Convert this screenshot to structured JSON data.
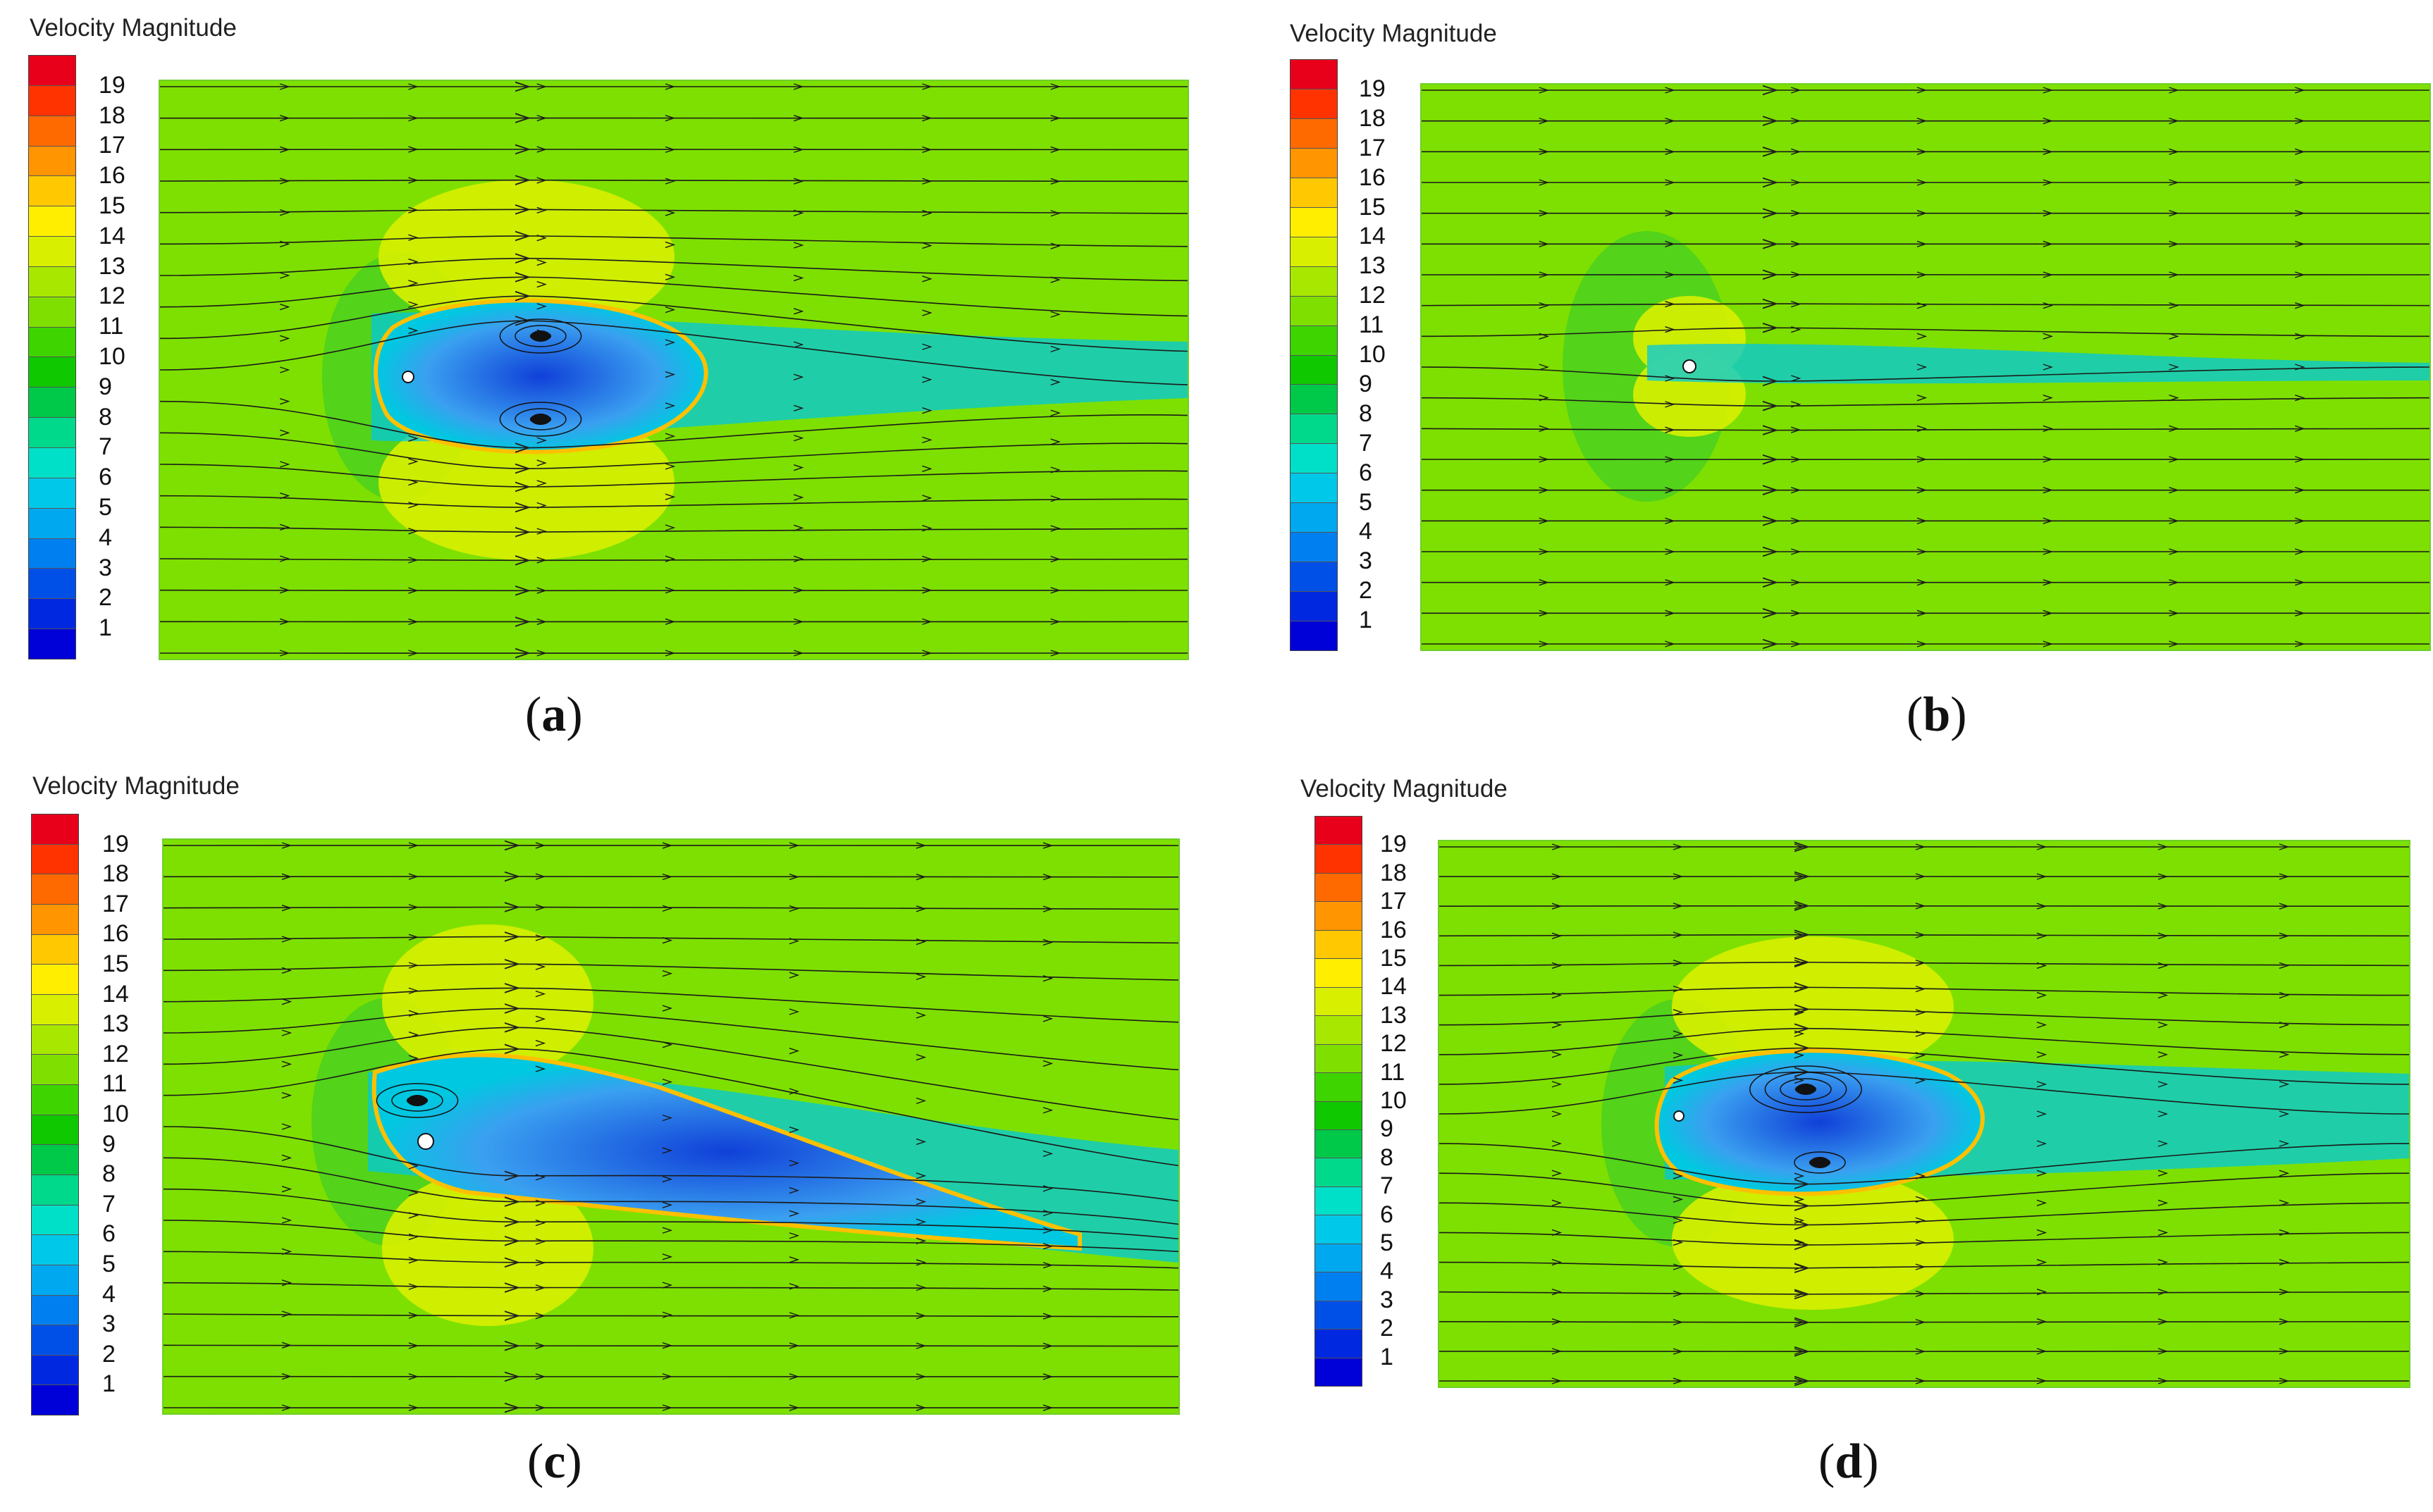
{
  "panels": [
    {
      "id": "a",
      "title": "Velocity Magnitude",
      "label": "(a)",
      "wake": "symmetric"
    },
    {
      "id": "b",
      "title": "Velocity Magnitude",
      "label": "(b)",
      "wake": "thin"
    },
    {
      "id": "c",
      "title": "Velocity Magnitude",
      "label": "(c)",
      "wake": "inclined"
    },
    {
      "id": "d",
      "title": "Velocity Magnitude",
      "label": "(d)",
      "wake": "symmetric"
    }
  ],
  "colorbar": {
    "ticks": [
      "19",
      "18",
      "17",
      "16",
      "15",
      "14",
      "13",
      "12",
      "11",
      "10",
      "9",
      "8",
      "7",
      "6",
      "5",
      "4",
      "3",
      "2",
      "1"
    ],
    "colors": [
      "#e8001a",
      "#ff3300",
      "#ff6a00",
      "#ff9500",
      "#ffc800",
      "#ffee00",
      "#d8f000",
      "#a8e800",
      "#7fe000",
      "#3ed400",
      "#10c800",
      "#00c848",
      "#00d88c",
      "#00e0c8",
      "#00c8e8",
      "#00a8f0",
      "#0080f0",
      "#0050e8",
      "#0028e0",
      "#0000d8"
    ]
  },
  "flow_colors": {
    "free_stream": "#7ee000",
    "cavity_light": "#3aa0f0",
    "cavity_dark": "#1040d8",
    "wake": "#00c8e0",
    "accel": "#d8f000",
    "shear": "#ffc000"
  }
}
